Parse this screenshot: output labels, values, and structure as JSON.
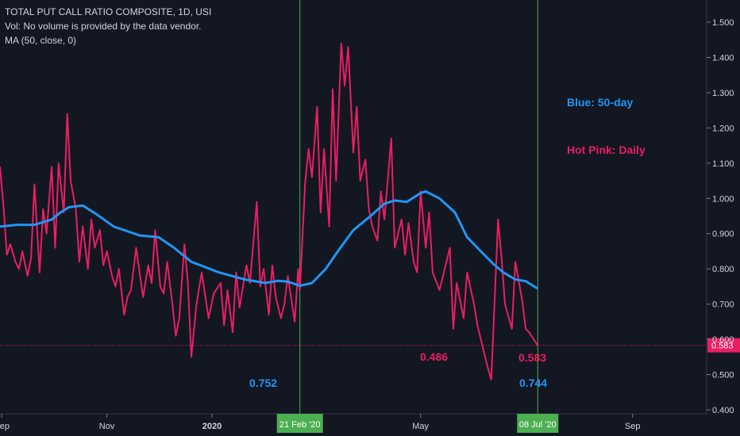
{
  "legend": {
    "title": "TOTAL PUT CALL RATIO COMPOSITE, 1D, USI",
    "volume_note": "Vol: No volume is provided by the data vendor.",
    "ma_label": "MA (50, close, 0)"
  },
  "notes": {
    "blue": "Blue: 50-day",
    "pink": "Hot Pink: Daily"
  },
  "annotations": [
    {
      "text": "0.752",
      "color": "#2196f3"
    },
    {
      "text": "0.486",
      "color": "#e91e63"
    },
    {
      "text": "0.583",
      "color": "#e91e63"
    },
    {
      "text": "0.744",
      "color": "#2196f3"
    }
  ],
  "colors": {
    "background": "#131722",
    "daily": "#e91e63",
    "ma": "#2196f3",
    "marker_line": "#4caf50",
    "axis_text": "#d1d4dc"
  },
  "chart_data": {
    "type": "line",
    "title": "TOTAL PUT CALL RATIO COMPOSITE, 1D, USI",
    "ylim": [
      0.4,
      1.5
    ],
    "y_ticks": [
      "1.500",
      "1.400",
      "1.300",
      "1.200",
      "1.100",
      "1.000",
      "0.900",
      "0.800",
      "0.700",
      "0.600",
      "0.500",
      "0.400"
    ],
    "x_ticks": [
      "Sep",
      "Nov",
      "2020",
      "May",
      "Sep"
    ],
    "x_range": [
      "2019-08-31",
      "2020-10-14"
    ],
    "grid": false,
    "last_value_label": "0.583",
    "vertical_markers": [
      {
        "date": "2020-02-21",
        "label": "21 Feb '20"
      },
      {
        "date": "2020-07-08",
        "label": "08 Jul '20"
      }
    ],
    "series": [
      {
        "name": "Daily",
        "color": "#e91e63",
        "points": [
          [
            "2019-08-31",
            1.09
          ],
          [
            "2019-09-02",
            0.98
          ],
          [
            "2019-09-04",
            0.84
          ],
          [
            "2019-09-06",
            0.87
          ],
          [
            "2019-09-09",
            0.82
          ],
          [
            "2019-09-11",
            0.8
          ],
          [
            "2019-09-13",
            0.85
          ],
          [
            "2019-09-16",
            0.78
          ],
          [
            "2019-09-18",
            0.83
          ],
          [
            "2019-09-20",
            1.04
          ],
          [
            "2019-09-23",
            0.79
          ],
          [
            "2019-09-25",
            0.97
          ],
          [
            "2019-09-27",
            0.9
          ],
          [
            "2019-09-30",
            1.09
          ],
          [
            "2019-10-02",
            0.86
          ],
          [
            "2019-10-04",
            1.1
          ],
          [
            "2019-10-07",
            0.96
          ],
          [
            "2019-10-09",
            1.24
          ],
          [
            "2019-10-11",
            1.05
          ],
          [
            "2019-10-14",
            0.97
          ],
          [
            "2019-10-16",
            0.82
          ],
          [
            "2019-10-18",
            0.92
          ],
          [
            "2019-10-21",
            0.8
          ],
          [
            "2019-10-23",
            0.94
          ],
          [
            "2019-10-25",
            0.86
          ],
          [
            "2019-10-28",
            0.91
          ],
          [
            "2019-10-30",
            0.81
          ],
          [
            "2019-11-01",
            0.85
          ],
          [
            "2019-11-04",
            0.78
          ],
          [
            "2019-11-06",
            0.75
          ],
          [
            "2019-11-08",
            0.8
          ],
          [
            "2019-11-11",
            0.67
          ],
          [
            "2019-11-13",
            0.72
          ],
          [
            "2019-11-15",
            0.74
          ],
          [
            "2019-11-18",
            0.86
          ],
          [
            "2019-11-20",
            0.79
          ],
          [
            "2019-11-22",
            0.72
          ],
          [
            "2019-11-25",
            0.81
          ],
          [
            "2019-11-27",
            0.76
          ],
          [
            "2019-11-29",
            0.91
          ],
          [
            "2019-12-02",
            0.75
          ],
          [
            "2019-12-04",
            0.73
          ],
          [
            "2019-12-06",
            0.82
          ],
          [
            "2019-12-09",
            0.7
          ],
          [
            "2019-12-11",
            0.61
          ],
          [
            "2019-12-13",
            0.66
          ],
          [
            "2019-12-16",
            0.87
          ],
          [
            "2019-12-18",
            0.76
          ],
          [
            "2019-12-20",
            0.55
          ],
          [
            "2019-12-23",
            0.7
          ],
          [
            "2019-12-26",
            0.79
          ],
          [
            "2019-12-30",
            0.66
          ],
          [
            "2020-01-02",
            0.73
          ],
          [
            "2020-01-06",
            0.76
          ],
          [
            "2020-01-08",
            0.64
          ],
          [
            "2020-01-10",
            0.74
          ],
          [
            "2020-01-13",
            0.62
          ],
          [
            "2020-01-15",
            0.79
          ],
          [
            "2020-01-17",
            0.69
          ],
          [
            "2020-01-21",
            0.81
          ],
          [
            "2020-01-23",
            0.76
          ],
          [
            "2020-01-27",
            0.99
          ],
          [
            "2020-01-29",
            0.75
          ],
          [
            "2020-01-31",
            0.8
          ],
          [
            "2020-02-03",
            0.67
          ],
          [
            "2020-02-05",
            0.81
          ],
          [
            "2020-02-07",
            0.72
          ],
          [
            "2020-02-10",
            0.66
          ],
          [
            "2020-02-12",
            0.7
          ],
          [
            "2020-02-14",
            0.78
          ],
          [
            "2020-02-18",
            0.65
          ],
          [
            "2020-02-20",
            0.8
          ],
          [
            "2020-02-21",
            0.74
          ],
          [
            "2020-02-24",
            1.04
          ],
          [
            "2020-02-26",
            1.14
          ],
          [
            "2020-02-28",
            1.06
          ],
          [
            "2020-03-02",
            1.26
          ],
          [
            "2020-03-04",
            0.96
          ],
          [
            "2020-03-06",
            1.14
          ],
          [
            "2020-03-09",
            0.92
          ],
          [
            "2020-03-11",
            1.31
          ],
          [
            "2020-03-13",
            1.05
          ],
          [
            "2020-03-16",
            1.44
          ],
          [
            "2020-03-18",
            1.32
          ],
          [
            "2020-03-20",
            1.43
          ],
          [
            "2020-03-23",
            1.13
          ],
          [
            "2020-03-25",
            1.26
          ],
          [
            "2020-03-27",
            1.05
          ],
          [
            "2020-03-30",
            1.11
          ],
          [
            "2020-04-01",
            0.97
          ],
          [
            "2020-04-03",
            0.92
          ],
          [
            "2020-04-06",
            0.88
          ],
          [
            "2020-04-08",
            1.02
          ],
          [
            "2020-04-10",
            0.94
          ],
          [
            "2020-04-14",
            1.17
          ],
          [
            "2020-04-16",
            0.86
          ],
          [
            "2020-04-20",
            0.94
          ],
          [
            "2020-04-22",
            0.84
          ],
          [
            "2020-04-24",
            0.93
          ],
          [
            "2020-04-27",
            0.82
          ],
          [
            "2020-04-29",
            0.79
          ],
          [
            "2020-05-01",
            1.02
          ],
          [
            "2020-05-04",
            0.86
          ],
          [
            "2020-05-06",
            0.96
          ],
          [
            "2020-05-08",
            0.79
          ],
          [
            "2020-05-12",
            0.74
          ],
          [
            "2020-05-14",
            0.78
          ],
          [
            "2020-05-18",
            0.86
          ],
          [
            "2020-05-20",
            0.63
          ],
          [
            "2020-05-22",
            0.76
          ],
          [
            "2020-05-26",
            0.66
          ],
          [
            "2020-05-28",
            0.79
          ],
          [
            "2020-06-01",
            0.7
          ],
          [
            "2020-06-03",
            0.64
          ],
          [
            "2020-06-05",
            0.6
          ],
          [
            "2020-06-09",
            0.52
          ],
          [
            "2020-06-11",
            0.486
          ],
          [
            "2020-06-15",
            0.94
          ],
          [
            "2020-06-17",
            0.83
          ],
          [
            "2020-06-19",
            0.7
          ],
          [
            "2020-06-23",
            0.63
          ],
          [
            "2020-06-25",
            0.82
          ],
          [
            "2020-06-29",
            0.71
          ],
          [
            "2020-07-01",
            0.63
          ],
          [
            "2020-07-03",
            0.62
          ],
          [
            "2020-07-07",
            0.59
          ],
          [
            "2020-07-08",
            0.583
          ]
        ]
      },
      {
        "name": "50-day",
        "color": "#2196f3",
        "points": [
          [
            "2019-08-31",
            0.92
          ],
          [
            "2019-09-10",
            0.925
          ],
          [
            "2019-09-20",
            0.925
          ],
          [
            "2019-09-30",
            0.94
          ],
          [
            "2019-10-05",
            0.96
          ],
          [
            "2019-10-10",
            0.975
          ],
          [
            "2019-10-18",
            0.98
          ],
          [
            "2019-10-26",
            0.955
          ],
          [
            "2019-11-05",
            0.92
          ],
          [
            "2019-11-20",
            0.895
          ],
          [
            "2019-12-01",
            0.89
          ],
          [
            "2019-12-10",
            0.86
          ],
          [
            "2019-12-20",
            0.82
          ],
          [
            "2020-01-05",
            0.79
          ],
          [
            "2020-01-20",
            0.77
          ],
          [
            "2020-02-01",
            0.76
          ],
          [
            "2020-02-08",
            0.766
          ],
          [
            "2020-02-14",
            0.764
          ],
          [
            "2020-02-21",
            0.752
          ],
          [
            "2020-02-28",
            0.76
          ],
          [
            "2020-03-07",
            0.8
          ],
          [
            "2020-03-14",
            0.85
          ],
          [
            "2020-03-23",
            0.91
          ],
          [
            "2020-04-02",
            0.95
          ],
          [
            "2020-04-10",
            0.985
          ],
          [
            "2020-04-16",
            0.994
          ],
          [
            "2020-04-23",
            0.99
          ],
          [
            "2020-05-01",
            1.015
          ],
          [
            "2020-05-04",
            1.02
          ],
          [
            "2020-05-12",
            1.0
          ],
          [
            "2020-05-21",
            0.96
          ],
          [
            "2020-05-28",
            0.89
          ],
          [
            "2020-06-05",
            0.85
          ],
          [
            "2020-06-12",
            0.815
          ],
          [
            "2020-06-18",
            0.79
          ],
          [
            "2020-06-25",
            0.77
          ],
          [
            "2020-07-01",
            0.765
          ],
          [
            "2020-07-08",
            0.744
          ]
        ]
      }
    ]
  }
}
